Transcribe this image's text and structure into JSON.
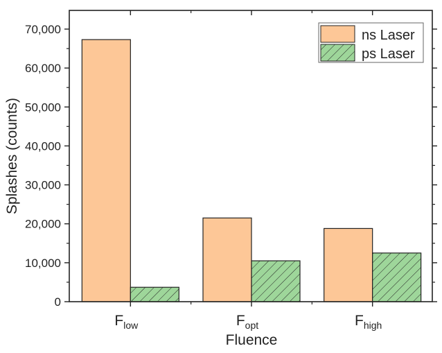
{
  "chart_data": {
    "type": "bar",
    "title": "",
    "xlabel": "Fluence",
    "ylabel": "Splashes (counts)",
    "categories": [
      {
        "main": "F",
        "sub": "low"
      },
      {
        "main": "F",
        "sub": "opt"
      },
      {
        "main": "F",
        "sub": "high"
      }
    ],
    "series": [
      {
        "name": "ns Laser",
        "values": [
          67300,
          21500,
          18800
        ],
        "color": "#FDC797",
        "pattern": "none"
      },
      {
        "name": "ps Laser",
        "values": [
          3700,
          10500,
          12500
        ],
        "color": "#9ED69A",
        "pattern": "diagonal-hatch"
      }
    ],
    "ylim": [
      0,
      74800
    ],
    "yticks": [
      0,
      10000,
      20000,
      30000,
      40000,
      50000,
      60000,
      70000
    ],
    "ytick_labels": [
      "0",
      "10,000",
      "20,000",
      "30,000",
      "40,000",
      "50,000",
      "60,000",
      "70,000"
    ],
    "grid": false,
    "legend": "top-right"
  }
}
